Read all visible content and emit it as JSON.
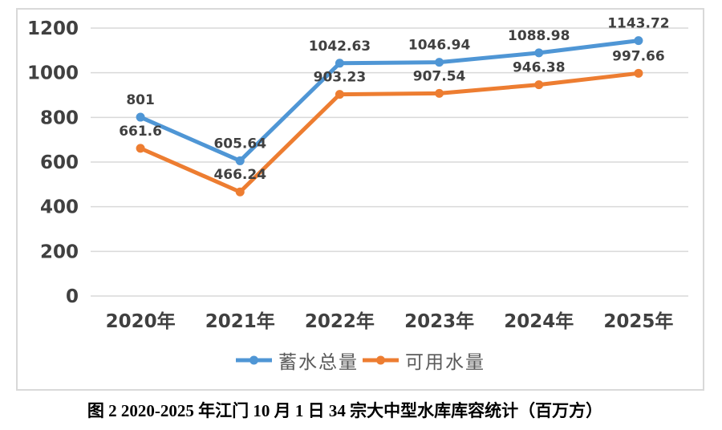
{
  "chart_data": {
    "type": "line",
    "categories": [
      "2020年",
      "2021年",
      "2022年",
      "2023年",
      "2024年",
      "2025年"
    ],
    "series": [
      {
        "name": "蓄水总量",
        "color": "#4F96D5",
        "values": [
          801,
          605.64,
          1042.63,
          1046.94,
          1088.98,
          1143.72
        ],
        "labels": [
          "801",
          "605.64",
          "1042.63",
          "1046.94",
          "1088.98",
          "1143.72"
        ]
      },
      {
        "name": "可用水量",
        "color": "#ED7D31",
        "values": [
          661.6,
          466.24,
          903.23,
          907.54,
          946.38,
          997.66
        ],
        "labels": [
          "661.6",
          "466.24",
          "903.23",
          "907.54",
          "946.38",
          "997.66"
        ]
      }
    ],
    "title": "",
    "xlabel": "",
    "ylabel": "",
    "ylim": [
      0,
      1200
    ],
    "yticks": [
      0,
      200,
      400,
      600,
      800,
      1000,
      1200
    ],
    "grid": true,
    "legend_position": "bottom",
    "marker": "circle"
  },
  "caption": "图 2 2020-2025 年江门 10 月 1 日 34 宗大中型水库库容统计（百万方）",
  "colors": {
    "grid": "#D9D9D9",
    "border": "#D9D9D9",
    "axis_text": "#404040",
    "data_label_text": "#404040",
    "legend_text": "#595959",
    "caption_text": "#000000",
    "background": "#FFFFFF"
  }
}
